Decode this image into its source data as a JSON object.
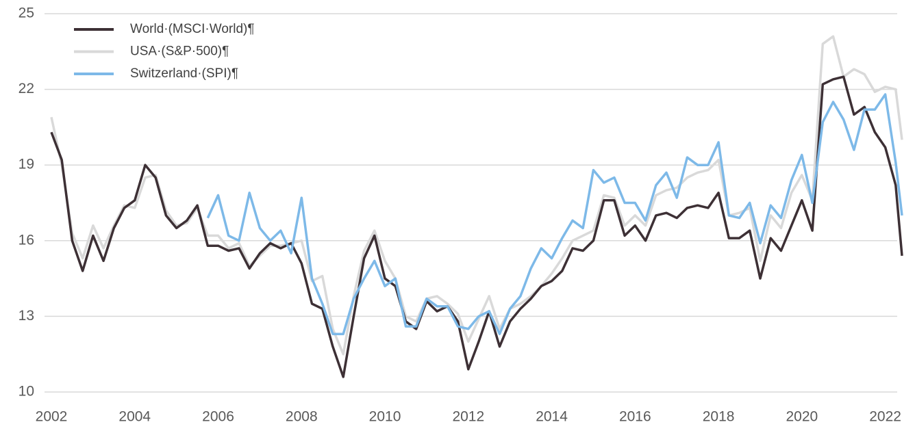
{
  "chart_data": {
    "type": "line",
    "x": [
      2002,
      2002.25,
      2002.5,
      2002.75,
      2003,
      2003.25,
      2003.5,
      2003.75,
      2004,
      2004.25,
      2004.5,
      2004.75,
      2005,
      2005.25,
      2005.5,
      2005.75,
      2006,
      2006.25,
      2006.5,
      2006.75,
      2007,
      2007.25,
      2007.5,
      2007.75,
      2008,
      2008.25,
      2008.5,
      2008.75,
      2009,
      2009.25,
      2009.5,
      2009.75,
      2010,
      2010.25,
      2010.5,
      2010.75,
      2011,
      2011.25,
      2011.5,
      2011.75,
      2012,
      2012.25,
      2012.5,
      2012.75,
      2013,
      2013.25,
      2013.5,
      2013.75,
      2014,
      2014.25,
      2014.5,
      2014.75,
      2015,
      2015.25,
      2015.5,
      2015.75,
      2016,
      2016.25,
      2016.5,
      2016.75,
      2017,
      2017.25,
      2017.5,
      2017.75,
      2018,
      2018.25,
      2018.5,
      2018.75,
      2019,
      2019.25,
      2019.5,
      2019.75,
      2020,
      2020.25,
      2020.5,
      2020.75,
      2021,
      2021.25,
      2021.5,
      2021.75,
      2022,
      2022.25,
      2022.4
    ],
    "series": [
      {
        "name": "World·(MSCI·World)¶",
        "color": "#3d3035",
        "values": [
          20.3,
          19.2,
          16.0,
          14.8,
          16.2,
          15.2,
          16.5,
          17.3,
          17.6,
          19.0,
          18.5,
          17.0,
          16.5,
          16.8,
          17.4,
          15.8,
          15.8,
          15.6,
          15.7,
          14.9,
          15.5,
          15.9,
          15.7,
          15.9,
          15.1,
          13.5,
          13.3,
          11.8,
          10.6,
          13.0,
          15.3,
          16.2,
          14.5,
          14.2,
          12.8,
          12.5,
          13.6,
          13.2,
          13.4,
          12.8,
          10.9,
          12.0,
          13.2,
          11.8,
          12.8,
          13.3,
          13.7,
          14.2,
          14.4,
          14.8,
          15.7,
          15.6,
          16.0,
          17.6,
          17.6,
          16.2,
          16.6,
          16.0,
          17.0,
          17.1,
          16.9,
          17.3,
          17.4,
          17.3,
          17.9,
          16.1,
          16.1,
          16.4,
          14.5,
          16.1,
          15.6,
          16.6,
          17.6,
          16.4,
          22.2,
          22.4,
          22.5,
          21.0,
          21.3,
          20.3,
          19.7,
          18.2,
          15.4
        ]
      },
      {
        "name": "USA·(S&P·500)¶",
        "color": "#d9d9d9",
        "values": [
          20.9,
          19.0,
          16.3,
          15.3,
          16.6,
          15.7,
          16.6,
          17.4,
          17.3,
          18.5,
          18.6,
          17.2,
          16.6,
          16.7,
          17.3,
          16.2,
          16.2,
          15.7,
          15.9,
          15.0,
          15.4,
          15.8,
          15.8,
          15.9,
          16.0,
          14.4,
          14.6,
          12.5,
          11.5,
          13.8,
          15.6,
          16.4,
          15.2,
          14.5,
          13.0,
          12.8,
          13.7,
          13.8,
          13.5,
          13.1,
          12.0,
          12.9,
          13.8,
          12.5,
          13.3,
          13.5,
          13.8,
          14.2,
          14.7,
          15.3,
          16.0,
          16.2,
          16.4,
          17.8,
          17.7,
          16.6,
          17.0,
          16.6,
          17.8,
          18.0,
          18.1,
          18.5,
          18.7,
          18.8,
          19.2,
          17.0,
          17.1,
          17.3,
          15.2,
          17.0,
          16.5,
          17.9,
          18.6,
          17.6,
          23.8,
          24.1,
          22.5,
          22.8,
          22.6,
          21.9,
          22.1,
          22.0,
          20.0
        ]
      },
      {
        "name": "Switzerland·(SPI)¶",
        "color": "#7db9e8",
        "values": [
          null,
          null,
          null,
          null,
          null,
          null,
          null,
          null,
          null,
          null,
          null,
          null,
          null,
          null,
          null,
          16.9,
          17.8,
          16.2,
          16.0,
          17.9,
          16.5,
          16.0,
          16.4,
          15.5,
          17.7,
          14.5,
          13.5,
          12.3,
          12.3,
          13.7,
          14.5,
          15.2,
          14.2,
          14.5,
          12.6,
          12.6,
          13.7,
          13.4,
          13.4,
          12.6,
          12.5,
          13.0,
          13.2,
          12.3,
          13.3,
          13.8,
          14.9,
          15.7,
          15.3,
          16.1,
          16.8,
          16.5,
          18.8,
          18.3,
          18.5,
          17.5,
          17.5,
          16.8,
          18.2,
          18.7,
          17.7,
          19.3,
          19.0,
          19.0,
          19.9,
          17.0,
          16.9,
          17.5,
          15.9,
          17.4,
          16.9,
          18.4,
          19.4,
          17.5,
          20.7,
          21.5,
          20.8,
          19.6,
          21.2,
          21.2,
          21.8,
          19.1,
          17.0
        ]
      }
    ],
    "xlim": [
      2002,
      2022.45
    ],
    "xticks": [
      2002,
      2004,
      2006,
      2008,
      2010,
      2012,
      2014,
      2016,
      2018,
      2020,
      2022
    ],
    "ylim": [
      10,
      25
    ],
    "yticks": [
      10,
      13,
      16,
      19,
      22,
      25
    ],
    "grid": true,
    "legend": "top-left"
  }
}
